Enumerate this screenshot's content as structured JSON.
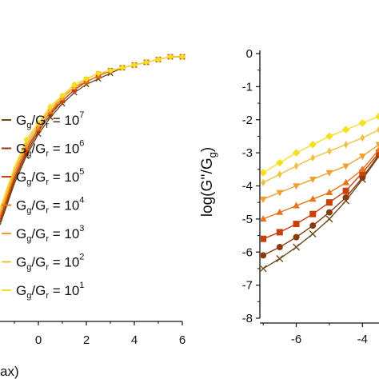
{
  "chart_data": [
    {
      "type": "line",
      "panel": "left",
      "x_tick_labels": [
        "0",
        "2",
        "4",
        "6"
      ],
      "xlabel_fragment": "ax)",
      "xlim": [
        -1.6,
        6
      ],
      "legend_placement": "left",
      "series": [
        {
          "name": "Gg/Gr = 10^7",
          "label_base": "G",
          "sub1": "g",
          "slash": "/G",
          "sub2": "r",
          "eq": " = 10",
          "sup": "7",
          "color": "#6b4a1a",
          "marker": "x",
          "x": [
            -1.6,
            -1.0,
            -0.5,
            0.0,
            0.5,
            1.0,
            1.5,
            2.0,
            2.5,
            3.0,
            3.5,
            4.0,
            4.5,
            5.0,
            5.5,
            6.0
          ],
          "y": [
            0.35,
            0.5,
            0.6,
            0.68,
            0.74,
            0.79,
            0.83,
            0.86,
            0.88,
            0.9,
            0.92,
            0.93,
            0.94,
            0.95,
            0.96,
            0.96
          ]
        },
        {
          "name": "Gg/Gr = 10^6",
          "label_base": "G",
          "sub1": "g",
          "slash": "/G",
          "sub2": "r",
          "eq": " = 10",
          "sup": "6",
          "color": "#8b3a10",
          "marker": "circle",
          "x": [
            -1.6,
            -1.0,
            -0.5,
            0.0,
            0.5,
            1.0,
            1.5,
            2.0,
            2.5,
            3.0,
            3.5,
            4.0,
            4.5,
            5.0,
            5.5,
            6.0
          ],
          "y": [
            0.36,
            0.51,
            0.61,
            0.69,
            0.75,
            0.8,
            0.84,
            0.87,
            0.89,
            0.91,
            0.92,
            0.93,
            0.94,
            0.95,
            0.96,
            0.96
          ]
        },
        {
          "name": "Gg/Gr = 10^5",
          "label_base": "G",
          "sub1": "g",
          "slash": "/G",
          "sub2": "r",
          "eq": " = 10",
          "sup": "5",
          "color": "#c8400a",
          "marker": "square",
          "x": [
            -1.6,
            -1.0,
            -0.5,
            0.0,
            0.5,
            1.0,
            1.5,
            2.0,
            2.5,
            3.0,
            3.5,
            4.0,
            4.5,
            5.0,
            5.5,
            6.0
          ],
          "y": [
            0.37,
            0.52,
            0.62,
            0.7,
            0.76,
            0.8,
            0.84,
            0.87,
            0.89,
            0.91,
            0.92,
            0.93,
            0.94,
            0.95,
            0.96,
            0.96
          ]
        },
        {
          "name": "Gg/Gr = 10^4",
          "label_base": "G",
          "sub1": "g",
          "slash": "/G",
          "sub2": "r",
          "eq": " = 10",
          "sup": "4",
          "color": "#e8741a",
          "marker": "triangle-up",
          "x": [
            -1.6,
            -1.0,
            -0.5,
            0.0,
            0.5,
            1.0,
            1.5,
            2.0,
            2.5,
            3.0,
            3.5,
            4.0,
            4.5,
            5.0,
            5.5,
            6.0
          ],
          "y": [
            0.38,
            0.53,
            0.63,
            0.7,
            0.76,
            0.81,
            0.85,
            0.87,
            0.89,
            0.91,
            0.92,
            0.93,
            0.94,
            0.95,
            0.96,
            0.96
          ]
        },
        {
          "name": "Gg/Gr = 10^3",
          "label_base": "G",
          "sub1": "g",
          "slash": "/G",
          "sub2": "r",
          "eq": " = 10",
          "sup": "3",
          "color": "#f0a030",
          "marker": "triangle-down",
          "x": [
            -1.6,
            -1.0,
            -0.5,
            0.0,
            0.5,
            1.0,
            1.5,
            2.0,
            2.5,
            3.0,
            3.5,
            4.0,
            4.5,
            5.0,
            5.5,
            6.0
          ],
          "y": [
            0.39,
            0.54,
            0.64,
            0.71,
            0.77,
            0.81,
            0.85,
            0.88,
            0.9,
            0.91,
            0.92,
            0.93,
            0.94,
            0.95,
            0.96,
            0.96
          ]
        },
        {
          "name": "Gg/Gr = 10^2",
          "label_base": "G",
          "sub1": "g",
          "slash": "/G",
          "sub2": "r",
          "eq": " = 10",
          "sup": "2",
          "color": "#f2c040",
          "marker": "diamond-thin",
          "x": [
            -1.6,
            -1.0,
            -0.5,
            0.0,
            0.5,
            1.0,
            1.5,
            2.0,
            2.5,
            3.0,
            3.5,
            4.0,
            4.5,
            5.0,
            5.5,
            6.0
          ],
          "y": [
            0.4,
            0.55,
            0.65,
            0.72,
            0.77,
            0.82,
            0.85,
            0.88,
            0.9,
            0.91,
            0.92,
            0.93,
            0.94,
            0.95,
            0.96,
            0.96
          ]
        },
        {
          "name": "Gg/Gr = 10^1",
          "label_base": "G",
          "sub1": "g",
          "slash": "/G",
          "sub2": "r",
          "eq": " = 10",
          "sup": "1",
          "color": "#f5e020",
          "marker": "diamond",
          "x": [
            -1.6,
            -1.0,
            -0.5,
            0.0,
            0.5,
            1.0,
            1.5,
            2.0,
            2.5,
            3.0,
            3.5,
            4.0,
            4.5,
            5.0,
            5.5,
            6.0
          ],
          "y": [
            0.41,
            0.56,
            0.66,
            0.72,
            0.78,
            0.82,
            0.86,
            0.88,
            0.9,
            0.91,
            0.92,
            0.93,
            0.94,
            0.95,
            0.96,
            0.96
          ]
        }
      ]
    },
    {
      "type": "line",
      "panel": "right",
      "ylabel": "log(G''/Gg)",
      "ylabel_parts": {
        "pre": "log(G''/G",
        "sub": "g",
        "post": ")"
      },
      "ylim": [
        -8,
        0
      ],
      "y_ticks": [
        0,
        -1,
        -2,
        -3,
        -4,
        -5,
        -6,
        -7,
        -8
      ],
      "y_tick_labels": [
        "0",
        "-1",
        "-2",
        "-3",
        "-4",
        "-5",
        "-6",
        "-7",
        "-8"
      ],
      "xlim": [
        -7.1,
        -3.5
      ],
      "x_ticks": [
        -6,
        -4
      ],
      "x_tick_labels": [
        "-6",
        "-4"
      ],
      "series": [
        {
          "name": "Gg/Gr = 10^7",
          "color": "#6b4a1a",
          "marker": "x",
          "x": [
            -7.0,
            -6.5,
            -6.0,
            -5.5,
            -5.0,
            -4.5,
            -4.0,
            -3.5
          ],
          "y": [
            -6.5,
            -6.2,
            -5.85,
            -5.45,
            -5.0,
            -4.45,
            -3.8,
            -3.1
          ]
        },
        {
          "name": "Gg/Gr = 10^6",
          "color": "#8b3a10",
          "marker": "circle",
          "x": [
            -7.0,
            -6.5,
            -6.0,
            -5.5,
            -5.0,
            -4.5,
            -4.0,
            -3.5
          ],
          "y": [
            -6.1,
            -5.85,
            -5.55,
            -5.2,
            -4.8,
            -4.35,
            -3.75,
            -3.05
          ]
        },
        {
          "name": "Gg/Gr = 10^5",
          "color": "#c8400a",
          "marker": "square",
          "x": [
            -7.0,
            -6.5,
            -6.0,
            -5.5,
            -5.0,
            -4.5,
            -4.0,
            -3.5
          ],
          "y": [
            -5.6,
            -5.4,
            -5.15,
            -4.85,
            -4.5,
            -4.15,
            -3.6,
            -3.0
          ]
        },
        {
          "name": "Gg/Gr = 10^4",
          "color": "#e8741a",
          "marker": "triangle-up",
          "x": [
            -7.0,
            -6.5,
            -6.0,
            -5.5,
            -5.0,
            -4.5,
            -4.0,
            -3.5
          ],
          "y": [
            -5.0,
            -4.8,
            -4.6,
            -4.4,
            -4.2,
            -3.9,
            -3.5,
            -2.9
          ]
        },
        {
          "name": "Gg/Gr = 10^3",
          "color": "#f0a030",
          "marker": "triangle-down",
          "x": [
            -7.0,
            -6.5,
            -6.0,
            -5.5,
            -5.0,
            -4.5,
            -4.0,
            -3.5
          ],
          "y": [
            -4.4,
            -4.2,
            -4.0,
            -3.8,
            -3.6,
            -3.4,
            -3.1,
            -2.75
          ]
        },
        {
          "name": "Gg/Gr = 10^2",
          "color": "#f2c040",
          "marker": "diamond-thin",
          "x": [
            -7.0,
            -6.5,
            -6.0,
            -5.5,
            -5.0,
            -4.5,
            -4.0,
            -3.5
          ],
          "y": [
            -3.9,
            -3.65,
            -3.4,
            -3.15,
            -2.95,
            -2.75,
            -2.55,
            -2.3
          ]
        },
        {
          "name": "Gg/Gr = 10^1",
          "color": "#f5e020",
          "marker": "diamond",
          "x": [
            -7.0,
            -6.5,
            -6.0,
            -5.5,
            -5.0,
            -4.5,
            -4.0,
            -3.5
          ],
          "y": [
            -3.6,
            -3.3,
            -3.0,
            -2.75,
            -2.5,
            -2.3,
            -2.1,
            -1.9
          ]
        }
      ]
    }
  ]
}
